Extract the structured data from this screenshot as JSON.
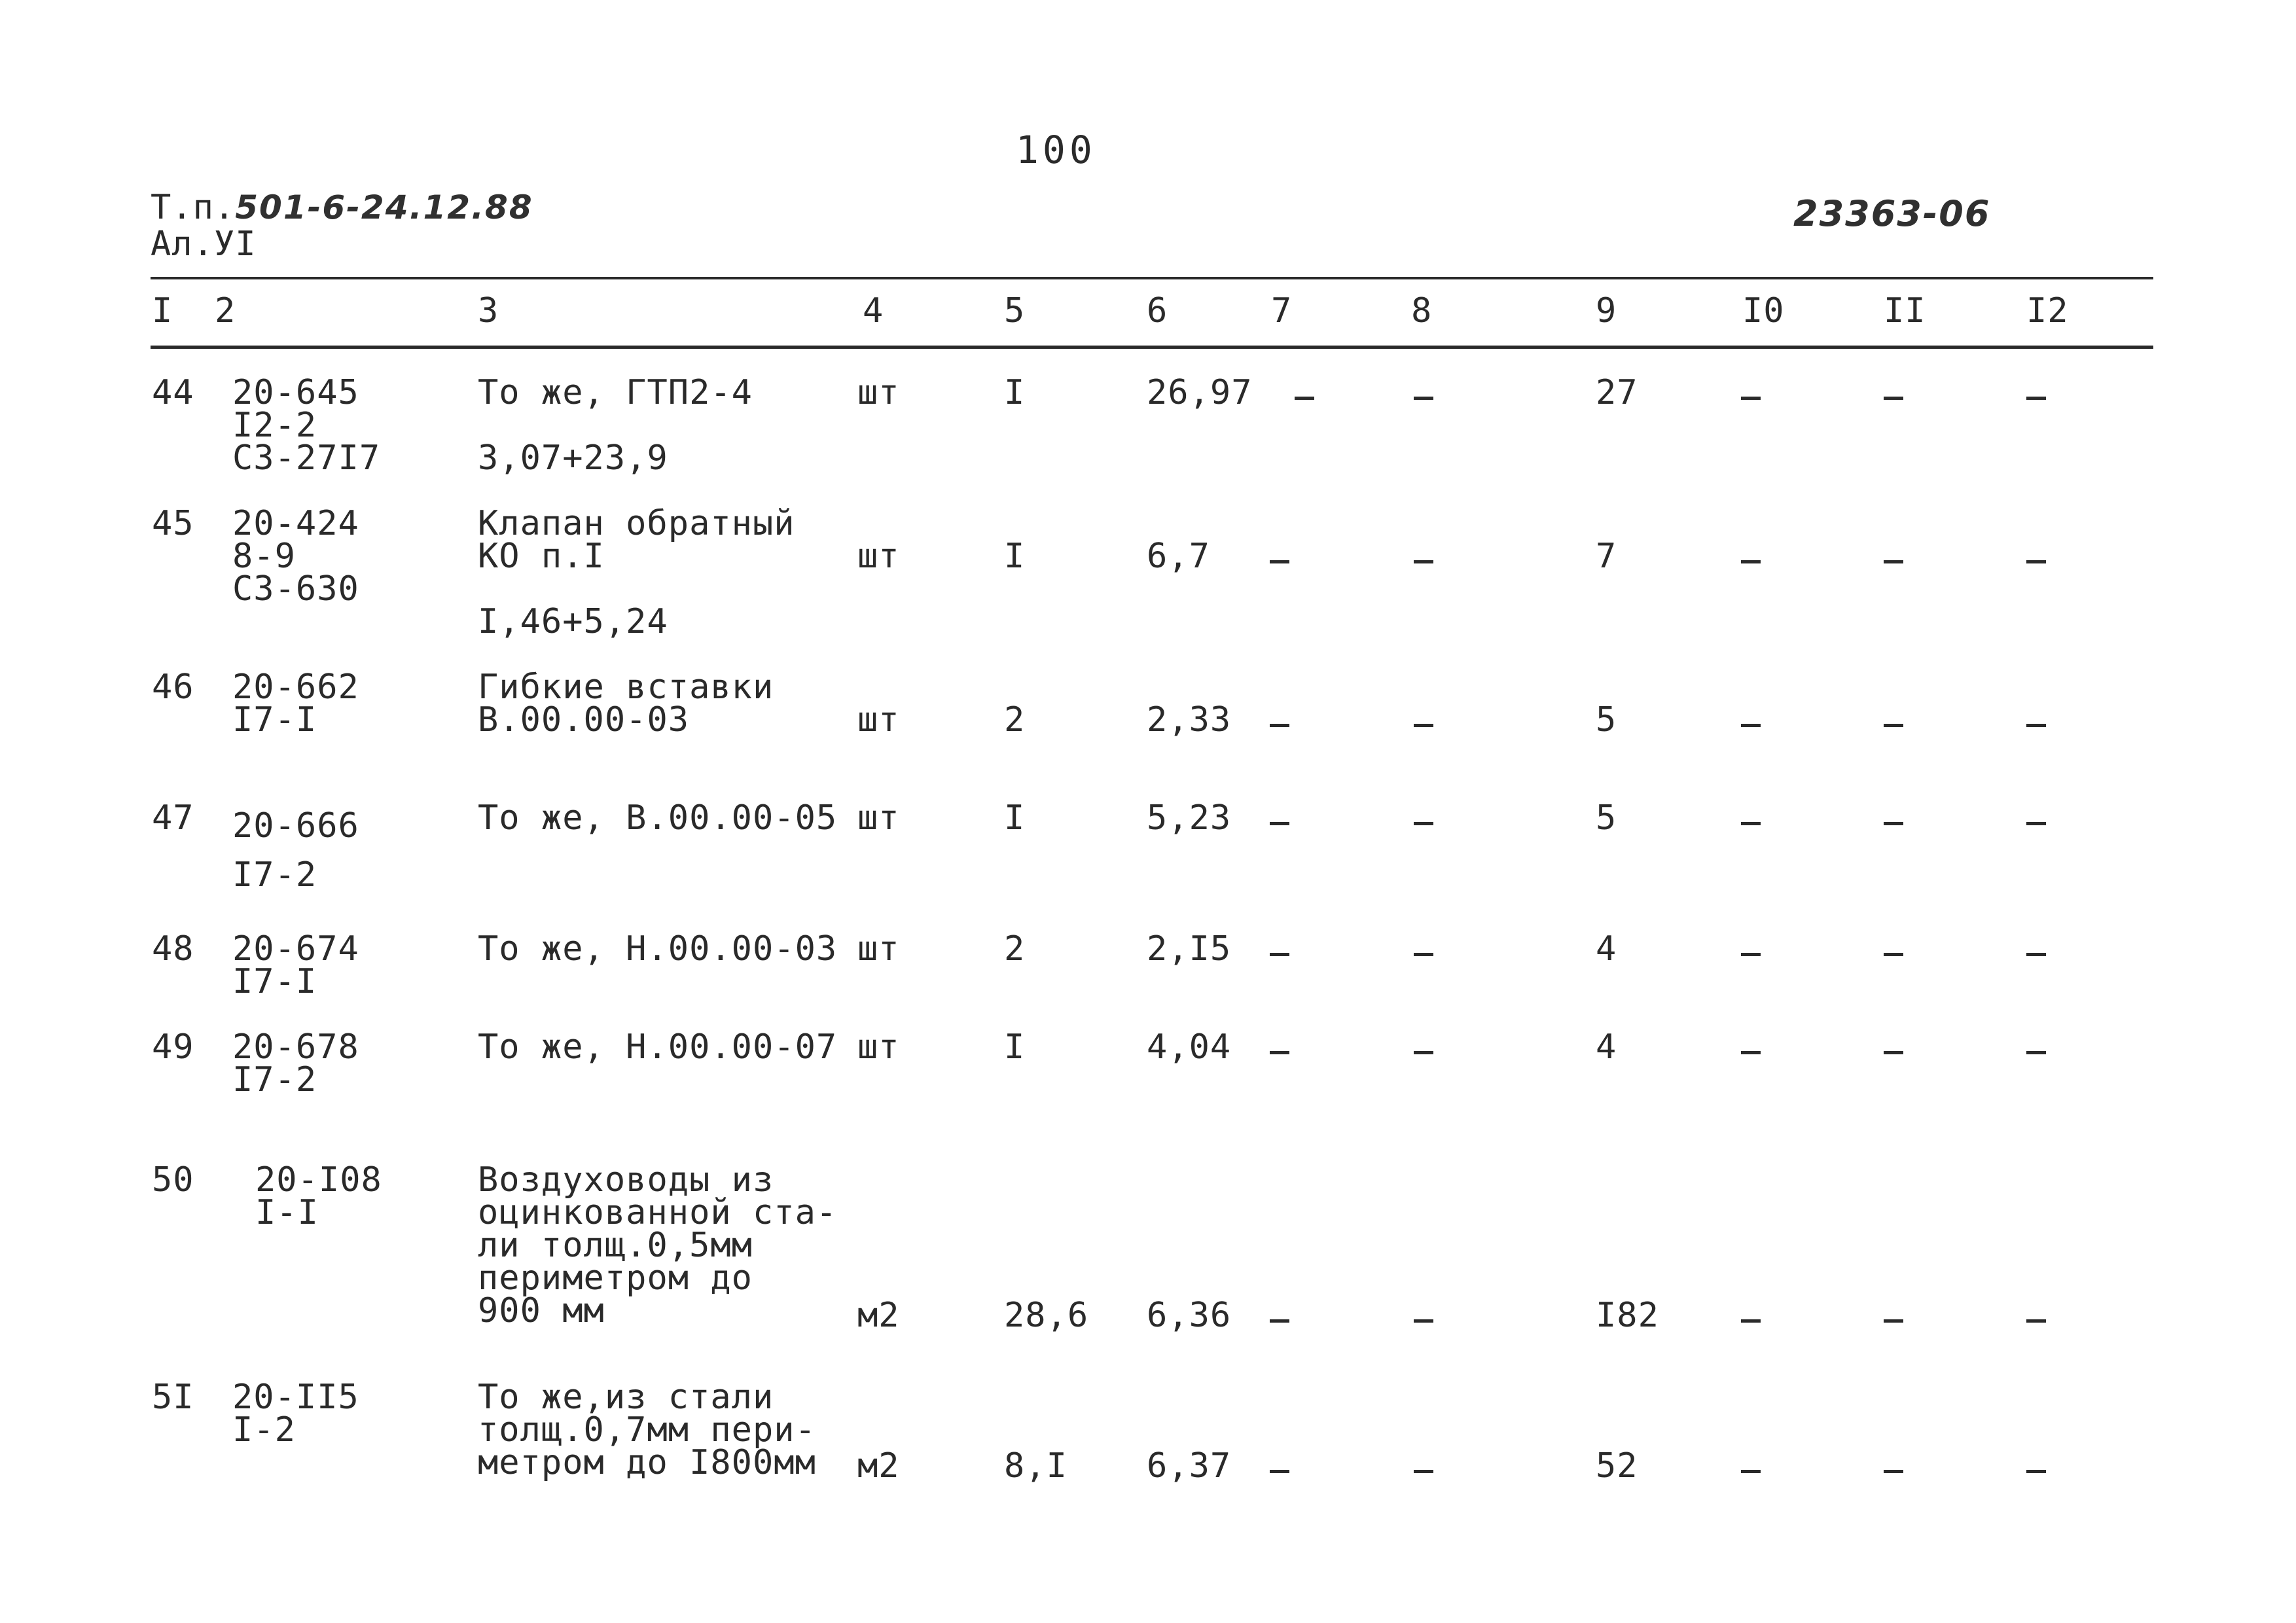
{
  "page_number": "100",
  "header": {
    "prefix": "Т.п.",
    "project_code": "501-6-24.12.88",
    "album": "Ал.УI",
    "document_number": "23363-06"
  },
  "columns": [
    "I",
    "2",
    "3",
    "4",
    "5",
    "6",
    "7",
    "8",
    "9",
    "I0",
    "II",
    "I2"
  ],
  "rows": [
    {
      "num": "44",
      "code": "20-645\nI2-2\nС3-27I7",
      "name": "То же, ГТП2-4",
      "price_note": "3,07+23,9",
      "unit": "шт",
      "qty": "I",
      "price": "26,97",
      "c9": "27"
    },
    {
      "num": "45",
      "code": "20-424\n8-9\nС3-630",
      "name": "Клапан обратный\nКО п.I",
      "price_note": "I,46+5,24",
      "unit": "шт",
      "qty": "I",
      "price": "6,7",
      "c9": "7"
    },
    {
      "num": "46",
      "code": "20-662\nI7-I",
      "name": "Гибкие вставки\nВ.00.00-03",
      "unit": "шт",
      "qty": "2",
      "price": "2,33",
      "c9": "5"
    },
    {
      "num": "47",
      "code": "20-666\nI7-2",
      "name": "То же, В.00.00-05",
      "unit": "шт",
      "qty": "I",
      "price": "5,23",
      "c9": "5"
    },
    {
      "num": "48",
      "code": "20-674\nI7-I",
      "name": "То же, Н.00.00-03",
      "unit": "шт",
      "qty": "2",
      "price": "2,I5",
      "c9": "4"
    },
    {
      "num": "49",
      "code": "20-678\nI7-2",
      "name": "То же, Н.00.00-07",
      "unit": "шт",
      "qty": "I",
      "price": "4,04",
      "c9": "4"
    },
    {
      "num": "50",
      "code": "20-I08\nI-I",
      "name": "Воздуховоды из\nоцинкованной ста-\nли толщ.0,5мм\nпериметром до\n900 мм",
      "unit": "м2",
      "qty": "28,6",
      "price": "6,36",
      "c9": "I82"
    },
    {
      "num": "5I",
      "code": "20-II5\nI-2",
      "name": "То же,из стали\nтолщ.0,7мм пери-\nметром до I800мм",
      "unit": "м2",
      "qty": "8,I",
      "price": "6,37",
      "c9": "52"
    }
  ]
}
